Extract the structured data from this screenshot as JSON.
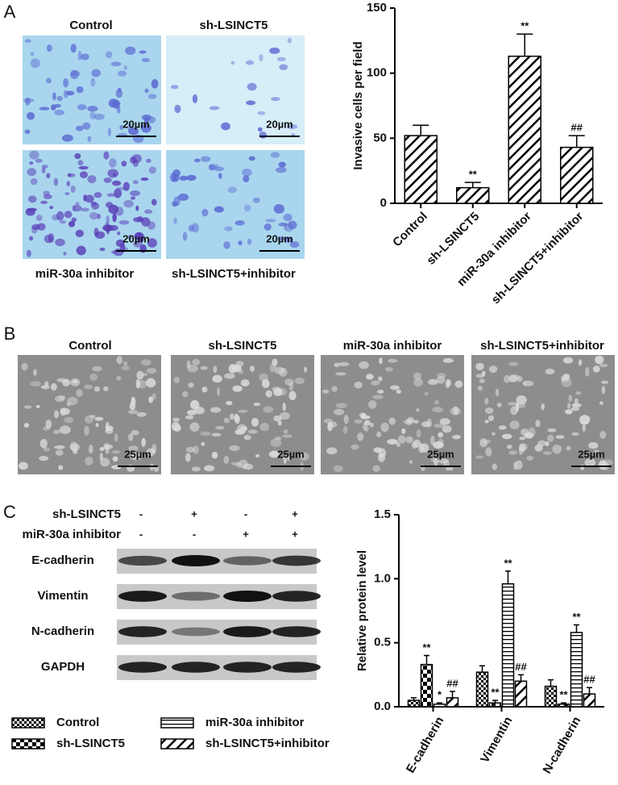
{
  "panel_labels": [
    "A",
    "B",
    "C"
  ],
  "panel_a": {
    "images": [
      {
        "caption": "Control",
        "scale": "20µm"
      },
      {
        "caption": "sh-LSINCT5",
        "scale": "20µm"
      },
      {
        "caption": "miR-30a inhibitor",
        "scale": "20µm"
      },
      {
        "caption": "sh-LSINCT5+inhibitor",
        "scale": "20µm"
      }
    ]
  },
  "panel_b": {
    "images": [
      {
        "caption": "Control",
        "scale": "25µm"
      },
      {
        "caption": "sh-LSINCT5",
        "scale": "25µm"
      },
      {
        "caption": "miR-30a inhibitor",
        "scale": "25µm"
      },
      {
        "caption": "sh-LSINCT5+inhibitor",
        "scale": "25µm"
      }
    ]
  },
  "panel_c": {
    "conditions": [
      {
        "label": "sh-LSINCT5",
        "signs": [
          "-",
          "+",
          "-",
          "+"
        ]
      },
      {
        "label": "miR-30a inhibitor",
        "signs": [
          "-",
          "-",
          "+",
          "+"
        ]
      }
    ],
    "blots": [
      "E-cadherin",
      "Vimentin",
      "N-cadherin",
      "GAPDH"
    ]
  },
  "chart_data": [
    {
      "type": "bar",
      "y_label": "Invasive cells per field",
      "categories": [
        "Control",
        "sh-LSINCT5",
        "miR-30a inhibitor",
        "sh-LSINCT5+inhibitor"
      ],
      "values": [
        52,
        12,
        113,
        43
      ],
      "errors": [
        8,
        4,
        17,
        9
      ],
      "annotations": [
        null,
        "**",
        "**",
        "##"
      ],
      "pattern": "diagonal",
      "color": "#000000",
      "ylim": [
        0,
        150
      ],
      "yticks": [
        0,
        50,
        100,
        150
      ]
    },
    {
      "type": "grouped-bar",
      "y_label": "Relative protein level",
      "categories": [
        "E-cadherin",
        "Vimentin",
        "N-cadherin"
      ],
      "series": [
        {
          "name": "Control",
          "color": "#000000",
          "pattern": "checker-small",
          "values": [
            0.05,
            0.27,
            0.16
          ],
          "errors": [
            0.02,
            0.05,
            0.05
          ],
          "annotations": [
            null,
            null,
            null
          ]
        },
        {
          "name": "sh-LSINCT5",
          "color": "#000000",
          "pattern": "checker-large",
          "values": [
            0.33,
            0.03,
            0.02
          ],
          "errors": [
            0.07,
            0.02,
            0.01
          ],
          "annotations": [
            "**",
            "**",
            "**"
          ]
        },
        {
          "name": "miR-30a inhibitor",
          "color": "#000000",
          "pattern": "horizontal",
          "values": [
            0.02,
            0.96,
            0.58
          ],
          "errors": [
            0.01,
            0.1,
            0.06
          ],
          "annotations": [
            "*",
            "**",
            "**"
          ]
        },
        {
          "name": "sh-LSINCT5+inhibitor",
          "color": "#000000",
          "pattern": "diagonal",
          "values": [
            0.07,
            0.2,
            0.1
          ],
          "errors": [
            0.05,
            0.05,
            0.05
          ],
          "annotations": [
            "##",
            "##",
            "##"
          ]
        }
      ],
      "ylim": [
        0,
        1.5
      ],
      "yticks": [
        {
          "value": 0,
          "label": "0.0"
        },
        0.5,
        {
          "value": 1,
          "label": "1.0"
        },
        1.5
      ]
    }
  ]
}
